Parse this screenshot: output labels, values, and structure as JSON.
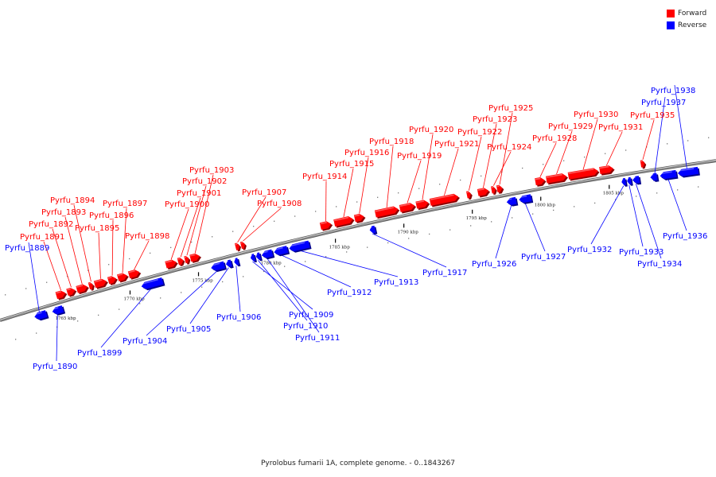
{
  "legend": {
    "forward": {
      "label": "Forward",
      "color": "#ff0000"
    },
    "reverse": {
      "label": "Reverse",
      "color": "#0000ff"
    }
  },
  "colors": {
    "forward": "#ff0000",
    "reverse": "#0000ff",
    "backbone": "#888888"
  },
  "caption": "Pyrolobus fumarii 1A, complete genome. - 0..1843267",
  "ticks": [
    {
      "kbp": 1765,
      "label": "1765 kbp"
    },
    {
      "kbp": 1770,
      "label": "1770 kbp"
    },
    {
      "kbp": 1775,
      "label": "1775 kbp"
    },
    {
      "kbp": 1780,
      "label": "1780 kbp"
    },
    {
      "kbp": 1785,
      "label": "1785 kbp"
    },
    {
      "kbp": 1790,
      "label": "1790 kbp"
    },
    {
      "kbp": 1795,
      "label": "1795 kbp"
    },
    {
      "kbp": 1800,
      "label": "1800 kbp"
    },
    {
      "kbp": 1805,
      "label": "1805 kbp"
    }
  ],
  "genes": [
    {
      "name": "Pyrfu_1889",
      "strand": "reverse",
      "start": 1763.0,
      "end": 1763.9
    },
    {
      "name": "Pyrfu_1890",
      "strand": "reverse",
      "start": 1764.3,
      "end": 1765.1
    },
    {
      "name": "Pyrfu_1891",
      "strand": "forward",
      "start": 1764.6,
      "end": 1765.3
    },
    {
      "name": "Pyrfu_1892",
      "strand": "forward",
      "start": 1765.4,
      "end": 1766.0
    },
    {
      "name": "Pyrfu_1893",
      "strand": "forward",
      "start": 1766.1,
      "end": 1766.9
    },
    {
      "name": "Pyrfu_1894",
      "strand": "forward",
      "start": 1767.0,
      "end": 1767.3
    },
    {
      "name": "Pyrfu_1895",
      "strand": "forward",
      "start": 1767.4,
      "end": 1768.3
    },
    {
      "name": "Pyrfu_1896",
      "strand": "forward",
      "start": 1768.4,
      "end": 1769.0
    },
    {
      "name": "Pyrfu_1897",
      "strand": "forward",
      "start": 1769.1,
      "end": 1769.8
    },
    {
      "name": "Pyrfu_1898",
      "strand": "forward",
      "start": 1769.9,
      "end": 1770.7
    },
    {
      "name": "Pyrfu_1899",
      "strand": "reverse",
      "start": 1770.8,
      "end": 1772.4
    },
    {
      "name": "Pyrfu_1900",
      "strand": "forward",
      "start": 1772.6,
      "end": 1773.4
    },
    {
      "name": "Pyrfu_1901",
      "strand": "forward",
      "start": 1773.5,
      "end": 1773.9
    },
    {
      "name": "Pyrfu_1902",
      "strand": "forward",
      "start": 1774.0,
      "end": 1774.3
    },
    {
      "name": "Pyrfu_1903",
      "strand": "forward",
      "start": 1774.4,
      "end": 1775.1
    },
    {
      "name": "Pyrfu_1904",
      "strand": "reverse",
      "start": 1775.9,
      "end": 1776.9
    },
    {
      "name": "Pyrfu_1905",
      "strand": "reverse",
      "start": 1777.0,
      "end": 1777.4
    },
    {
      "name": "Pyrfu_1906",
      "strand": "reverse",
      "start": 1777.6,
      "end": 1777.9
    },
    {
      "name": "Pyrfu_1907",
      "strand": "forward",
      "start": 1777.7,
      "end": 1778.0
    },
    {
      "name": "Pyrfu_1908",
      "strand": "forward",
      "start": 1778.1,
      "end": 1778.4
    },
    {
      "name": "Pyrfu_1909",
      "strand": "reverse",
      "start": 1778.8,
      "end": 1779.1
    },
    {
      "name": "Pyrfu_1910",
      "strand": "reverse",
      "start": 1779.2,
      "end": 1779.5
    },
    {
      "name": "Pyrfu_1911",
      "strand": "reverse",
      "start": 1779.6,
      "end": 1780.4
    },
    {
      "name": "Pyrfu_1912",
      "strand": "reverse",
      "start": 1780.5,
      "end": 1781.5
    },
    {
      "name": "Pyrfu_1913",
      "strand": "reverse",
      "start": 1781.6,
      "end": 1783.1
    },
    {
      "name": "Pyrfu_1914",
      "strand": "forward",
      "start": 1783.9,
      "end": 1784.7
    },
    {
      "name": "Pyrfu_1915",
      "strand": "forward",
      "start": 1784.9,
      "end": 1786.3
    },
    {
      "name": "Pyrfu_1916",
      "strand": "forward",
      "start": 1786.4,
      "end": 1787.1
    },
    {
      "name": "Pyrfu_1917",
      "strand": "reverse",
      "start": 1787.5,
      "end": 1787.9
    },
    {
      "name": "Pyrfu_1918",
      "strand": "forward",
      "start": 1787.9,
      "end": 1789.6
    },
    {
      "name": "Pyrfu_1919",
      "strand": "forward",
      "start": 1789.7,
      "end": 1790.8
    },
    {
      "name": "Pyrfu_1920",
      "strand": "forward",
      "start": 1790.9,
      "end": 1791.8
    },
    {
      "name": "Pyrfu_1921",
      "strand": "forward",
      "start": 1791.9,
      "end": 1794.0
    },
    {
      "name": "Pyrfu_1922",
      "strand": "forward",
      "start": 1794.6,
      "end": 1794.9
    },
    {
      "name": "Pyrfu_1923",
      "strand": "forward",
      "start": 1795.4,
      "end": 1796.2
    },
    {
      "name": "Pyrfu_1924",
      "strand": "forward",
      "start": 1796.4,
      "end": 1796.7
    },
    {
      "name": "Pyrfu_1925",
      "strand": "forward",
      "start": 1796.8,
      "end": 1797.2
    },
    {
      "name": "Pyrfu_1926",
      "strand": "reverse",
      "start": 1797.5,
      "end": 1798.2
    },
    {
      "name": "Pyrfu_1927",
      "strand": "reverse",
      "start": 1798.4,
      "end": 1799.3
    },
    {
      "name": "Pyrfu_1928",
      "strand": "forward",
      "start": 1799.6,
      "end": 1800.3
    },
    {
      "name": "Pyrfu_1929",
      "strand": "forward",
      "start": 1800.4,
      "end": 1801.9
    },
    {
      "name": "Pyrfu_1930",
      "strand": "forward",
      "start": 1802.0,
      "end": 1804.2
    },
    {
      "name": "Pyrfu_1931",
      "strand": "forward",
      "start": 1804.3,
      "end": 1805.3
    },
    {
      "name": "Pyrfu_1932",
      "strand": "reverse",
      "start": 1805.9,
      "end": 1806.2
    },
    {
      "name": "Pyrfu_1933",
      "strand": "reverse",
      "start": 1806.3,
      "end": 1806.6
    },
    {
      "name": "Pyrfu_1934",
      "strand": "reverse",
      "start": 1806.7,
      "end": 1807.2
    },
    {
      "name": "Pyrfu_1935",
      "strand": "forward",
      "start": 1807.3,
      "end": 1807.6
    },
    {
      "name": "Pyrfu_1936",
      "strand": "reverse",
      "start": 1808.7,
      "end": 1809.9
    },
    {
      "name": "Pyrfu_1937",
      "strand": "reverse",
      "start": 1808.0,
      "end": 1808.5
    },
    {
      "name": "Pyrfu_1938",
      "strand": "reverse",
      "start": 1810.0,
      "end": 1811.5
    }
  ]
}
